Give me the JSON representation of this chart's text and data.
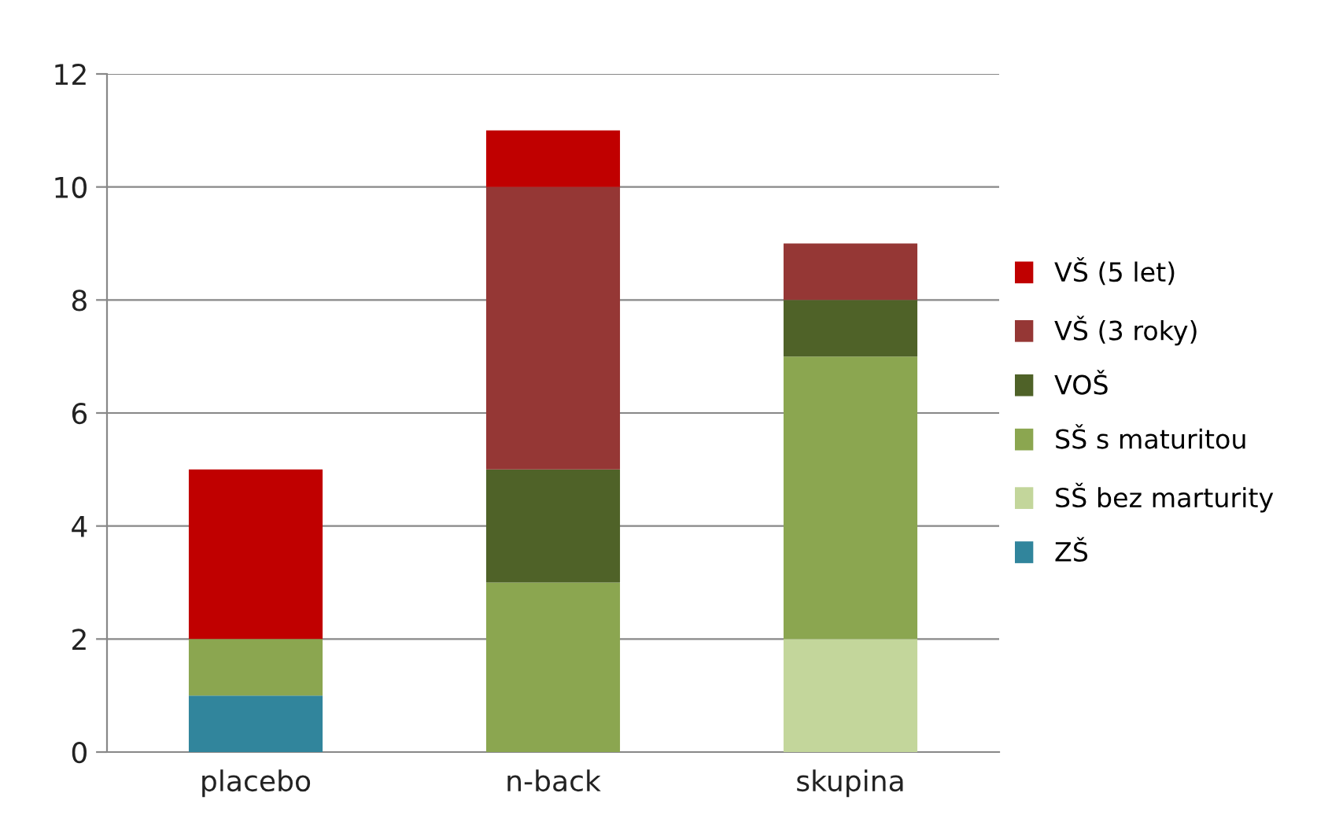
{
  "chart_data": {
    "type": "bar",
    "stacked": true,
    "categories": [
      "placebo",
      "n-back",
      "skupina"
    ],
    "series": [
      {
        "name": "ZŠ",
        "color": "#31859c",
        "values": [
          1,
          0,
          0
        ]
      },
      {
        "name": "SŠ bez marturity",
        "color": "#c3d69b",
        "values": [
          0,
          0,
          2
        ]
      },
      {
        "name": "SŠ s maturitou",
        "color": "#8ba650",
        "values": [
          1,
          3,
          5
        ]
      },
      {
        "name": "VOŠ",
        "color": "#4f6228",
        "values": [
          0,
          2,
          1
        ]
      },
      {
        "name": "VŠ (3 roky)",
        "color": "#953735",
        "values": [
          0,
          5,
          1
        ]
      },
      {
        "name": "VŠ (5 let)",
        "color": "#c00000",
        "values": [
          3,
          1,
          0
        ]
      }
    ],
    "ylim": [
      0,
      12
    ],
    "yticks": [
      0,
      2,
      4,
      6,
      8,
      10,
      12
    ],
    "grid": "y",
    "legend": "right"
  }
}
